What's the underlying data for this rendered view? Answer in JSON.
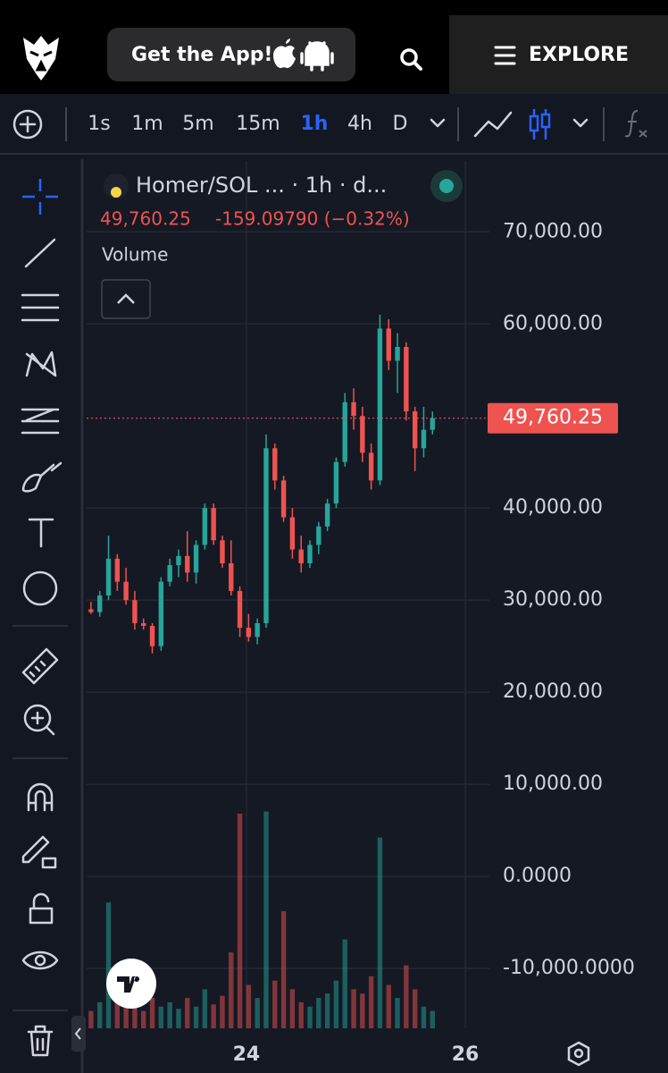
{
  "header": {
    "app_button": "Get the App!",
    "explore": "EXPLORE"
  },
  "toolbar": {
    "intervals": [
      "1s",
      "1m",
      "5m",
      "15m",
      "1h",
      "4h",
      "D"
    ],
    "active": "1h"
  },
  "chart_data": {
    "type": "candlestick",
    "title": "Homer/SOL ... · 1h · d...",
    "last_label": "49,760.25",
    "change": "-159.09790 (−0.32%)",
    "volume_label": "Volume",
    "up_color": "#26a69a",
    "down_color": "#ef5350",
    "x": [
      22.58,
      22.66,
      22.74,
      22.82,
      22.9,
      22.98,
      23.06,
      23.14,
      23.22,
      23.3,
      23.38,
      23.46,
      23.54,
      23.62,
      23.7,
      23.78,
      23.86,
      23.94,
      24.02,
      24.1,
      24.18,
      24.26,
      24.34,
      24.42,
      24.5,
      24.58,
      24.66,
      24.74,
      24.82,
      24.9,
      24.98,
      25.06,
      25.14,
      25.22,
      25.3,
      25.38,
      25.46,
      25.54,
      25.62,
      25.7
    ],
    "open": [
      29000,
      28700,
      30500,
      34500,
      32000,
      30000,
      27500,
      27200,
      25000,
      32000,
      33800,
      34800,
      33000,
      36000,
      40000,
      36500,
      34000,
      31000,
      27000,
      26000,
      27500,
      46500,
      43000,
      39000,
      35500,
      34000,
      36000,
      38000,
      40500,
      45000,
      51500,
      50000,
      46000,
      43000,
      59500,
      56000,
      57500,
      50500,
      46500,
      48500
    ],
    "high": [
      29800,
      31000,
      37000,
      35000,
      33500,
      31000,
      28000,
      27500,
      32500,
      34500,
      35500,
      37500,
      36500,
      40500,
      40500,
      37000,
      36500,
      31500,
      28500,
      28000,
      48000,
      47000,
      43500,
      40000,
      37000,
      36500,
      38500,
      41000,
      45500,
      52500,
      53000,
      51000,
      47000,
      61000,
      60500,
      59000,
      58000,
      51000,
      51000,
      50500
    ],
    "low": [
      28500,
      28200,
      30000,
      31000,
      29500,
      26800,
      26800,
      24200,
      24500,
      31500,
      32500,
      32000,
      31800,
      35500,
      36000,
      33500,
      30500,
      26000,
      25500,
      25200,
      27000,
      42000,
      38500,
      34500,
      33000,
      33500,
      35000,
      37500,
      40000,
      44500,
      48500,
      45000,
      42000,
      42500,
      55000,
      52500,
      49500,
      44000,
      45500,
      48000
    ],
    "close": [
      28700,
      30500,
      34500,
      32000,
      30000,
      27500,
      27200,
      25000,
      32000,
      33800,
      34800,
      33000,
      36000,
      40000,
      36500,
      34000,
      31000,
      27000,
      26000,
      27500,
      46500,
      43000,
      39000,
      35500,
      34000,
      36000,
      38000,
      40500,
      45000,
      51500,
      50000,
      46000,
      43000,
      59500,
      56000,
      57500,
      50500,
      46500,
      48500,
      49760.25
    ],
    "volume": [
      8,
      12,
      58,
      15,
      10,
      12,
      8,
      14,
      10,
      12,
      9,
      14,
      10,
      18,
      11,
      15,
      35,
      99,
      20,
      14,
      100,
      22,
      54,
      18,
      12,
      10,
      14,
      16,
      22,
      41,
      18,
      16,
      24,
      88,
      20,
      14,
      29,
      18,
      10,
      8
    ],
    "volume_ylim": [
      0,
      400
    ],
    "xlim": [
      22.54,
      26.22
    ],
    "xticks": [
      24,
      26
    ],
    "ylim": [
      -16500,
      77700
    ],
    "yticks": [
      {
        "value": 70000,
        "label": "70,000.00"
      },
      {
        "value": 60000,
        "label": "60,000.00"
      },
      {
        "value": 40000,
        "label": "40,000.00"
      },
      {
        "value": 30000,
        "label": "30,000.00"
      },
      {
        "value": 20000,
        "label": "20,000.00"
      },
      {
        "value": 10000,
        "label": "10,000.00"
      },
      {
        "value": 0,
        "label": "0.0000"
      },
      {
        "value": -10000,
        "label": "-10,000.0000"
      }
    ],
    "grid": true
  }
}
